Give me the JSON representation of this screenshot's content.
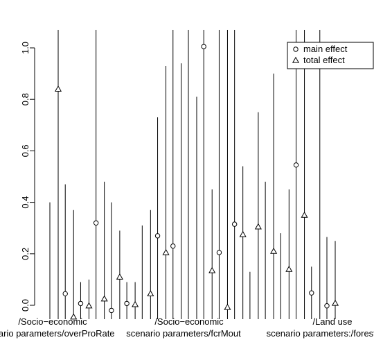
{
  "chart_data": {
    "type": "scatter",
    "title": "",
    "xlabel": "",
    "ylabel": "",
    "ylim": [
      -0.04,
      1.05
    ],
    "y_ticks": [
      0.0,
      0.2,
      0.4,
      0.6,
      0.8,
      1.0
    ],
    "y_tick_labels": [
      "0.0",
      "0.2",
      "0.4",
      "0.6",
      "0.8",
      "1.0"
    ],
    "x_tick_labels": [
      {
        "line1": "/Socio−economic",
        "line2": "scenario parameters/overProRate"
      },
      {
        "line1": "/Socio−economic",
        "line2": "scenario parameters/fcrMout"
      },
      {
        "line1": "/Land use",
        "line2": "scenario parameters:/forestDe"
      }
    ],
    "legend": {
      "position": "top-right",
      "entries": [
        {
          "label": "main effect",
          "marker": "circle"
        },
        {
          "label": "total effect",
          "marker": "triangle"
        }
      ]
    },
    "grid": false,
    "series": [
      {
        "name": "main effect",
        "marker": "circle",
        "points": [
          {
            "x": 1,
            "y": -0.09,
            "lo": -0.09,
            "hi": 0.4
          },
          {
            "x": 2,
            "y": 0.045,
            "lo": -0.09,
            "hi": 0.47
          },
          {
            "x": 3,
            "y": 0.007,
            "lo": -0.09,
            "hi": 0.09
          },
          {
            "x": 4,
            "y": 0.32,
            "lo": -0.09,
            "hi": 1.07
          },
          {
            "x": 5,
            "y": -0.02,
            "lo": -0.09,
            "hi": 0.4
          },
          {
            "x": 6,
            "y": 0.007,
            "lo": -0.09,
            "hi": 0.09
          },
          {
            "x": 7,
            "y": -0.09,
            "lo": -0.09,
            "hi": 0.31
          },
          {
            "x": 8,
            "y": 0.27,
            "lo": -0.09,
            "hi": 0.73
          },
          {
            "x": 9,
            "y": 0.23,
            "lo": -0.09,
            "hi": 1.07
          },
          {
            "x": 10,
            "y": -0.09,
            "lo": -0.09,
            "hi": 1.07
          },
          {
            "x": 11,
            "y": 1.005,
            "lo": -0.09,
            "hi": 1.07
          },
          {
            "x": 12,
            "y": 0.205,
            "lo": -0.09,
            "hi": 1.07
          },
          {
            "x": 13,
            "y": 0.315,
            "lo": -0.09,
            "hi": 1.07
          },
          {
            "x": 14,
            "y": -0.09,
            "lo": -0.09,
            "hi": 0.13
          },
          {
            "x": 15,
            "y": -0.09,
            "lo": -0.09,
            "hi": 0.48
          },
          {
            "x": 16,
            "y": -0.09,
            "lo": -0.09,
            "hi": 0.28
          },
          {
            "x": 17,
            "y": 0.545,
            "lo": -0.09,
            "hi": 1.07
          },
          {
            "x": 18,
            "y": 0.048,
            "lo": -0.09,
            "hi": 0.15
          },
          {
            "x": 19,
            "y": -0.002,
            "lo": -0.09,
            "hi": 0.265
          }
        ]
      },
      {
        "name": "total effect",
        "marker": "triangle",
        "points": [
          {
            "x": 1,
            "y": 0.84,
            "lo": -0.09,
            "hi": 1.07
          },
          {
            "x": 2,
            "y": -0.045,
            "lo": -0.09,
            "hi": 0.37
          },
          {
            "x": 3,
            "y": -0.002,
            "lo": -0.09,
            "hi": 0.1
          },
          {
            "x": 4,
            "y": 0.025,
            "lo": -0.09,
            "hi": 0.48
          },
          {
            "x": 5,
            "y": 0.11,
            "lo": -0.09,
            "hi": 0.29
          },
          {
            "x": 6,
            "y": 0.003,
            "lo": -0.09,
            "hi": 0.09
          },
          {
            "x": 7,
            "y": 0.045,
            "lo": -0.09,
            "hi": 0.37
          },
          {
            "x": 8,
            "y": 0.205,
            "lo": -0.09,
            "hi": 0.93
          },
          {
            "x": 9,
            "y": -0.09,
            "lo": -0.09,
            "hi": 0.94
          },
          {
            "x": 10,
            "y": -0.09,
            "lo": -0.09,
            "hi": 0.81
          },
          {
            "x": 11,
            "y": 0.135,
            "lo": -0.09,
            "hi": 0.45
          },
          {
            "x": 12,
            "y": -0.008,
            "lo": -0.09,
            "hi": 1.07
          },
          {
            "x": 13,
            "y": 0.275,
            "lo": -0.09,
            "hi": 0.54
          },
          {
            "x": 14,
            "y": 0.305,
            "lo": -0.09,
            "hi": 0.75
          },
          {
            "x": 15,
            "y": 0.21,
            "lo": -0.09,
            "hi": 0.9
          },
          {
            "x": 16,
            "y": 0.14,
            "lo": -0.09,
            "hi": 0.45
          },
          {
            "x": 17,
            "y": 0.35,
            "lo": -0.09,
            "hi": 1.07
          },
          {
            "x": 18,
            "y": -0.09,
            "lo": -0.09,
            "hi": 1.07
          },
          {
            "x": 19,
            "y": 0.008,
            "lo": -0.09,
            "hi": 0.25
          }
        ]
      }
    ]
  }
}
